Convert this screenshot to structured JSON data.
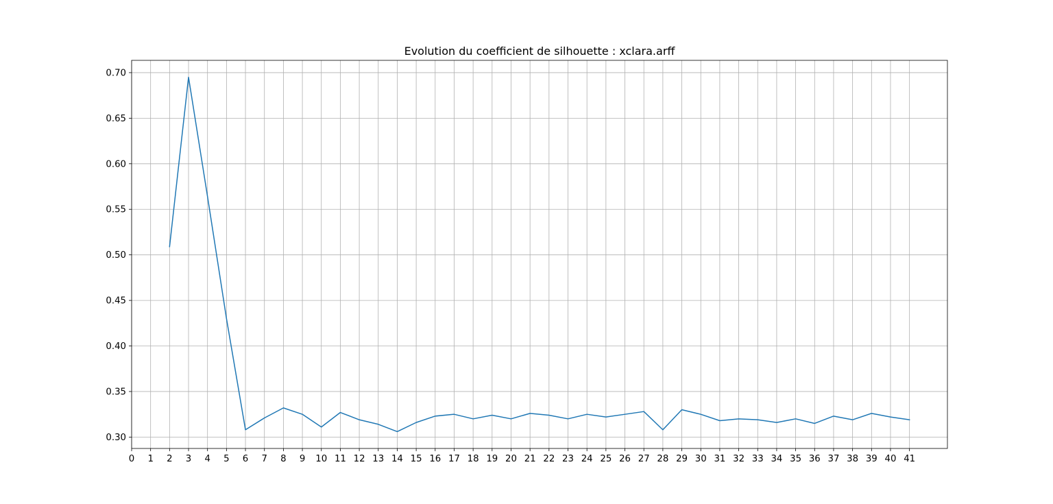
{
  "chart_data": {
    "type": "line",
    "title": "Evolution du coefficient de silhouette : xclara.arff",
    "xlabel": "",
    "ylabel": "",
    "grid": true,
    "xlim": [
      0,
      43
    ],
    "ylim": [
      0.2875,
      0.7135
    ],
    "xticks": [
      0,
      1,
      2,
      3,
      4,
      5,
      6,
      7,
      8,
      9,
      10,
      11,
      12,
      13,
      14,
      15,
      16,
      17,
      18,
      19,
      20,
      21,
      22,
      23,
      24,
      25,
      26,
      27,
      28,
      29,
      30,
      31,
      32,
      33,
      34,
      35,
      36,
      37,
      38,
      39,
      40,
      41
    ],
    "yticks": [
      "0.30",
      "0.35",
      "0.40",
      "0.45",
      "0.50",
      "0.55",
      "0.60",
      "0.65",
      "0.70"
    ],
    "line_color": "#1f77b4",
    "series": [
      {
        "x": [
          2,
          3,
          4,
          5,
          6,
          7,
          8,
          9,
          10,
          11,
          12,
          13,
          14,
          15,
          16,
          17,
          18,
          19,
          20,
          21,
          22,
          23,
          24,
          25,
          26,
          27,
          28,
          29,
          30,
          31,
          32,
          33,
          34,
          35,
          36,
          37,
          38,
          39,
          40,
          41
        ],
        "values": [
          0.509,
          0.695,
          0.564,
          0.43,
          0.308,
          0.321,
          0.332,
          0.325,
          0.311,
          0.327,
          0.319,
          0.314,
          0.306,
          0.316,
          0.323,
          0.325,
          0.32,
          0.324,
          0.32,
          0.326,
          0.324,
          0.32,
          0.325,
          0.322,
          0.325,
          0.328,
          0.308,
          0.33,
          0.325,
          0.318,
          0.32,
          0.319,
          0.316,
          0.32,
          0.315,
          0.323,
          0.319,
          0.326,
          0.322,
          0.319
        ]
      }
    ]
  }
}
